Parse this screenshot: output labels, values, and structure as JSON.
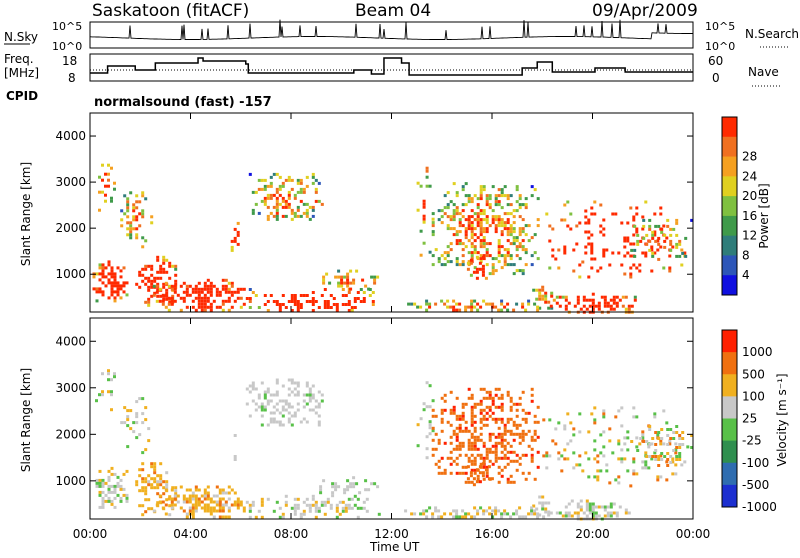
{
  "header": {
    "site": "Saskatoon (fitACF)",
    "beam": "Beam 04",
    "date": "09/Apr/2009"
  },
  "sky_panel": {
    "left_label": "N.Sky",
    "right_label": "N.Search",
    "left_ticks": [
      "10^5",
      "10^0"
    ],
    "right_ticks": [
      "10^5",
      "10^0"
    ]
  },
  "freq_panel": {
    "left_label_line1": "Freq.",
    "left_label_line2": "[MHz]",
    "right_label": "Nave",
    "left_ticks": [
      "18",
      "8"
    ],
    "right_ticks": [
      "60",
      "0"
    ]
  },
  "cpid": {
    "label": "CPID",
    "mode_text": "normalsound (fast) -157"
  },
  "chart_data": [
    {
      "type": "heatmap",
      "title": "",
      "ylabel": "Slant Range [km]",
      "ylim": [
        180,
        4500
      ],
      "yticks": [
        "1000",
        "2000",
        "3000",
        "4000"
      ],
      "xlim": [
        "00:00",
        "24:00"
      ],
      "colorbar": {
        "label": "Power [dB]",
        "ticks": [
          "4",
          "8",
          "12",
          "16",
          "20",
          "24",
          "28"
        ],
        "colors": [
          "#1010e0",
          "#2d56b8",
          "#2f7d7a",
          "#3f9a4a",
          "#7fc040",
          "#e0d020",
          "#f5a020",
          "#f07020",
          "#ff2a00"
        ]
      }
    },
    {
      "type": "heatmap",
      "title": "",
      "ylabel": "Slant Range [km]",
      "ylim": [
        180,
        4500
      ],
      "yticks": [
        "1000",
        "2000",
        "3000",
        "4000"
      ],
      "xlim": [
        "00:00",
        "24:00"
      ],
      "xticks": [
        "00:00",
        "04:00",
        "08:00",
        "12:00",
        "16:00",
        "20:00",
        "00:00"
      ],
      "xlabel": "Time UT",
      "colorbar": {
        "label": "Velocity [m s⁻¹]",
        "ticks": [
          "1000",
          "500",
          "100",
          "25",
          "-25",
          "-100",
          "-500",
          "-1000"
        ],
        "colors": [
          "#1c2fd0",
          "#2f6db0",
          "#2f8f4f",
          "#58c048",
          "#c8c8c8",
          "#f0b020",
          "#f07010",
          "#ff2000"
        ]
      }
    }
  ]
}
